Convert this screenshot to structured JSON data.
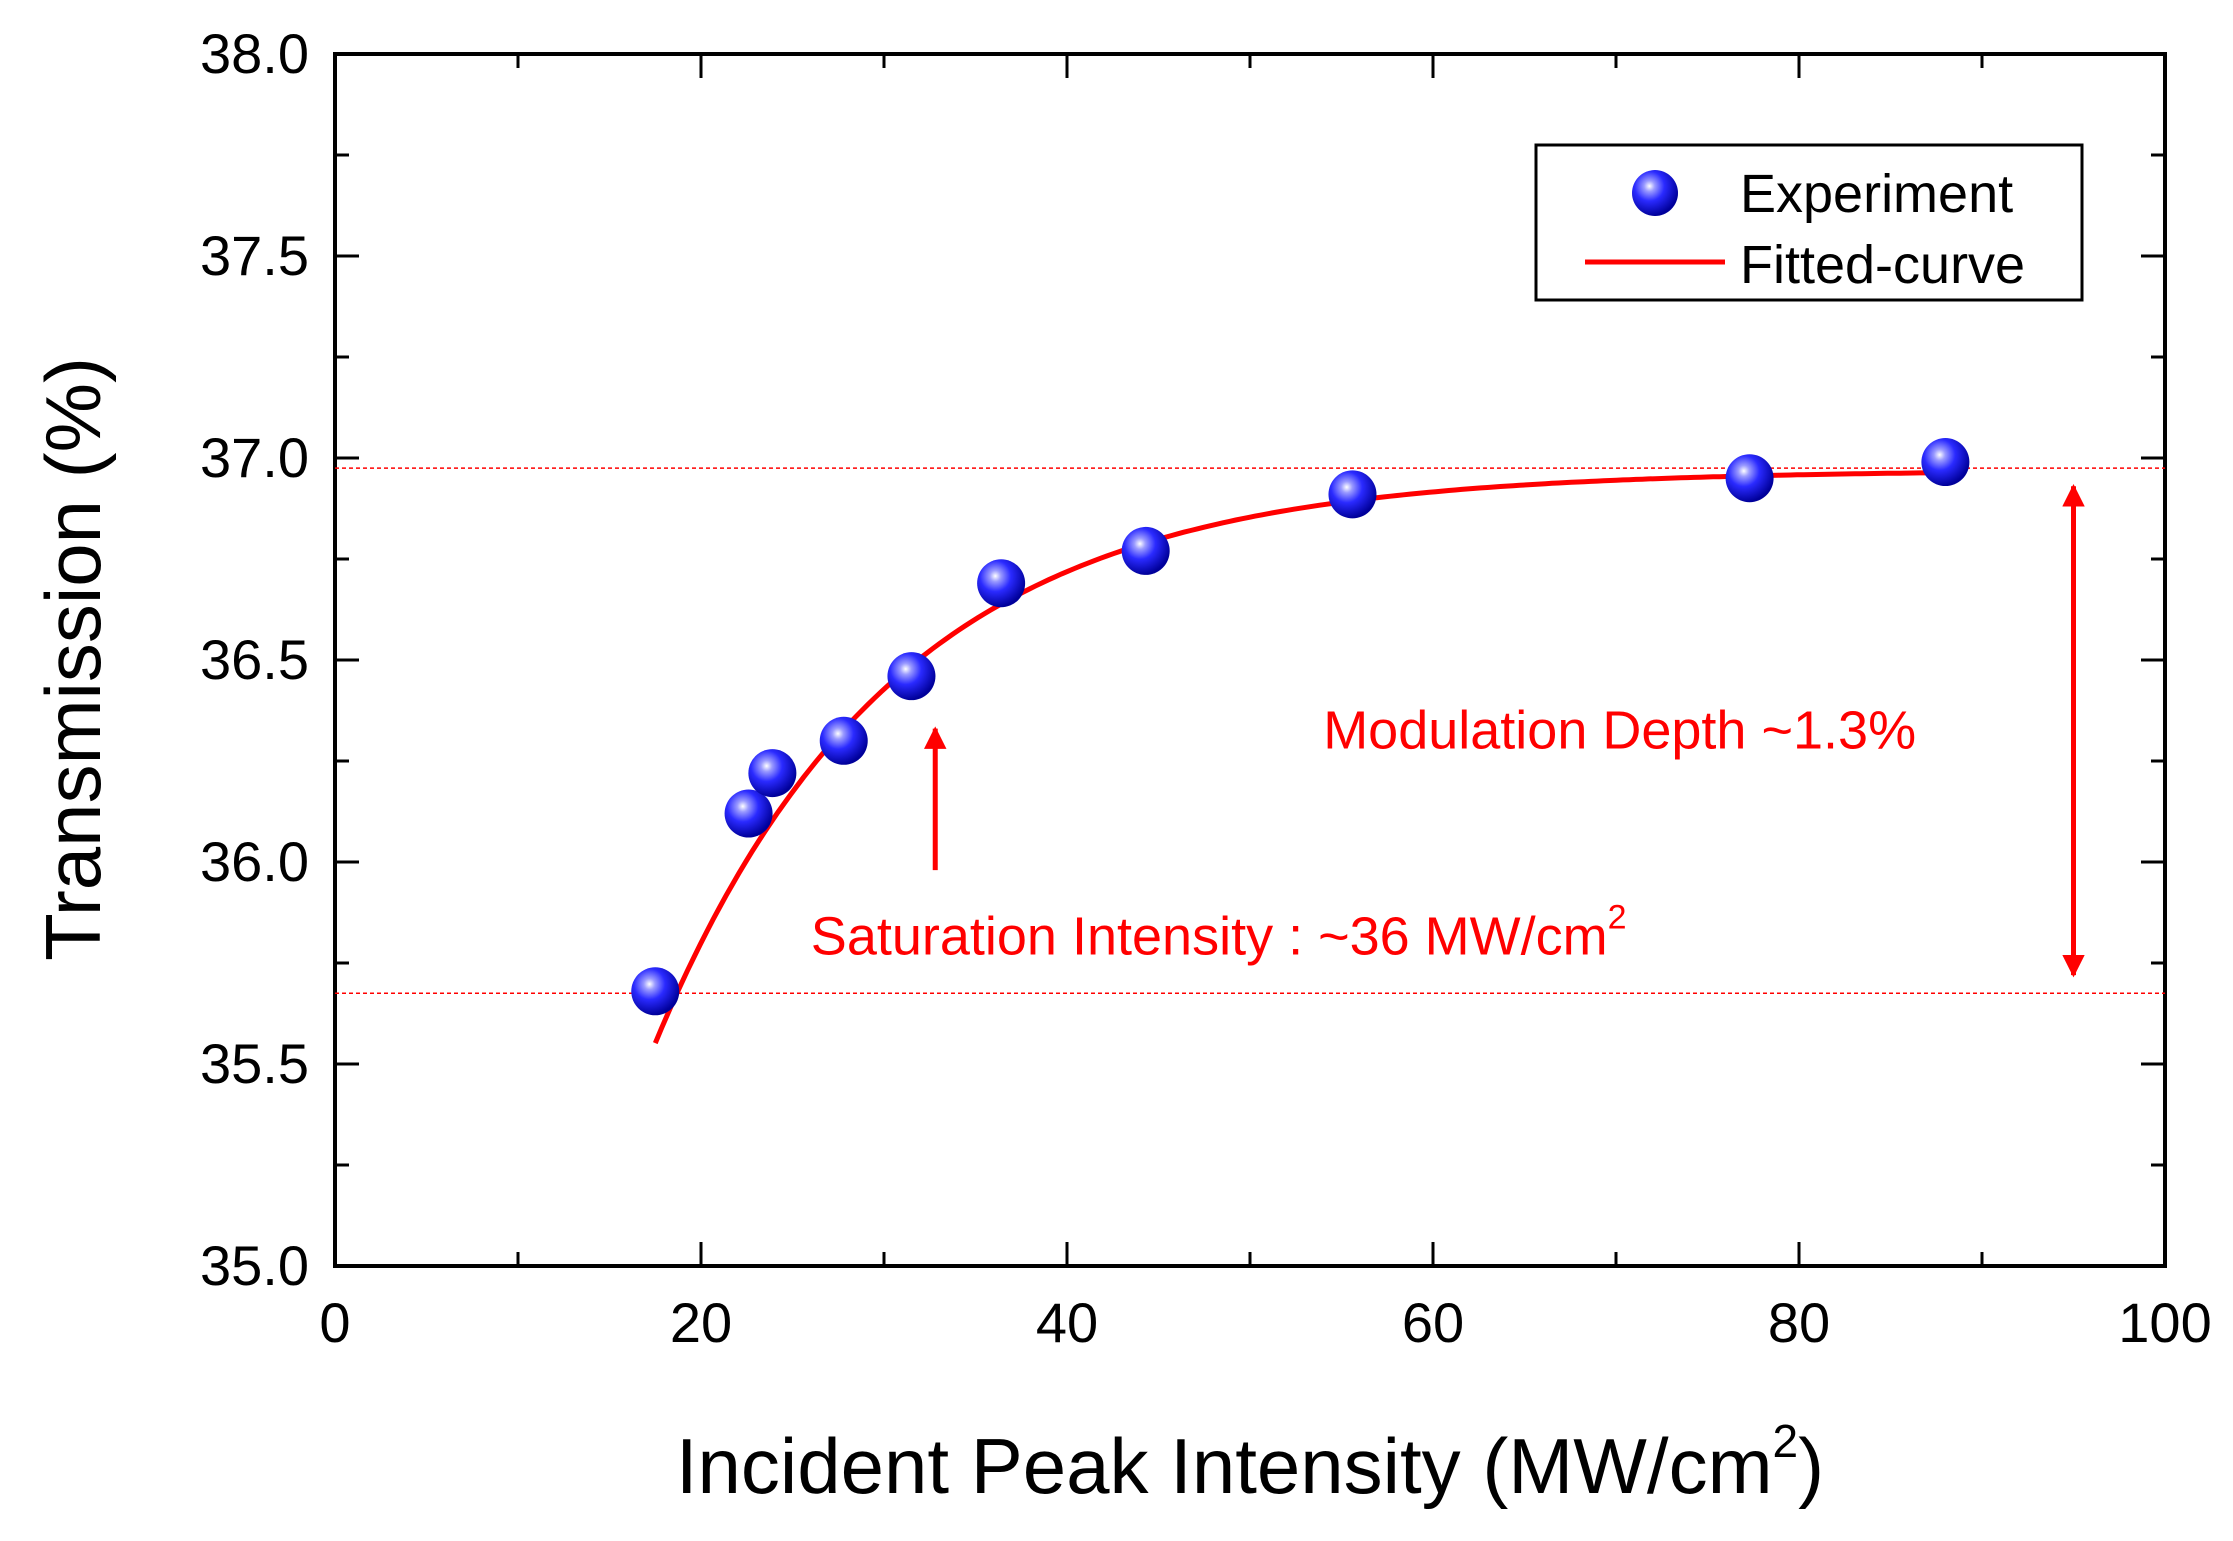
{
  "chart_data": {
    "type": "scatter",
    "title": "",
    "xlabel": "Incident Peak Intensity (MW/cm",
    "xlabel_superscript": "2",
    "xlabel_suffix": ")",
    "ylabel": "Transmission (%)",
    "xlim": [
      0,
      100
    ],
    "ylim": [
      35.0,
      38.0
    ],
    "x_ticks": [
      0,
      20,
      40,
      60,
      80,
      100
    ],
    "x_tick_labels": [
      "0",
      "20",
      "40",
      "60",
      "80",
      "100"
    ],
    "y_ticks": [
      35.0,
      35.5,
      36.0,
      36.5,
      37.0,
      37.5,
      38.0
    ],
    "y_tick_labels": [
      "35.0",
      "35.5",
      "36.0",
      "36.5",
      "37.0",
      "37.5",
      "38.0"
    ],
    "grid": false,
    "legend": {
      "position": "top-right",
      "entries": [
        "Experiment",
        "Fitted-curve"
      ]
    },
    "series": [
      {
        "name": "Experiment",
        "kind": "scatter",
        "color": "#0000ff",
        "x": [
          17.5,
          22.6,
          23.9,
          27.8,
          31.5,
          36.4,
          44.3,
          55.6,
          77.3,
          88.0
        ],
        "y": [
          35.68,
          36.12,
          36.22,
          36.3,
          36.46,
          36.69,
          36.77,
          36.91,
          36.95,
          36.99
        ]
      },
      {
        "name": "Fitted-curve",
        "kind": "line",
        "color": "#ff0000",
        "model": {
          "T_max": 36.97,
          "amplitude": 5.45,
          "decay": 13.0
        },
        "x_range": [
          17.5,
          88.0
        ]
      }
    ],
    "reference_lines": [
      {
        "orientation": "horizontal",
        "y": 36.975,
        "color": "#ff0000",
        "style": "dashed"
      },
      {
        "orientation": "horizontal",
        "y": 35.675,
        "color": "#ff0000",
        "style": "dashed"
      }
    ],
    "annotations": [
      {
        "text": "Modulation Depth ~1.3%",
        "x": 54,
        "y": 36.33,
        "color": "#ff0000"
      },
      {
        "text": "Saturation Intensity : ~36 MW/cm",
        "superscript": "2",
        "x": 26,
        "y": 35.82,
        "color": "#ff0000"
      }
    ],
    "arrows": [
      {
        "kind": "single",
        "x": 32.8,
        "y_from": 35.98,
        "y_to": 36.33,
        "color": "#ff0000"
      },
      {
        "kind": "double",
        "x": 95.0,
        "y_from": 36.93,
        "y_to": 35.72,
        "color": "#ff0000"
      }
    ]
  }
}
